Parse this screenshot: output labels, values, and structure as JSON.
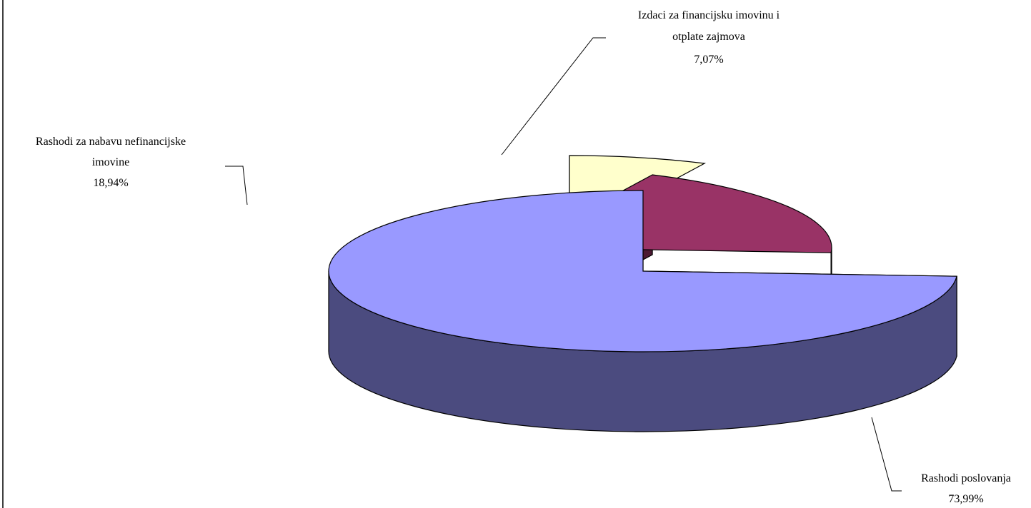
{
  "chart_data": {
    "type": "pie",
    "style": "3d-exploded",
    "title": "",
    "slices": [
      {
        "name": "Rashodi poslovanja",
        "name_lines": [
          "Rashodi poslovanja"
        ],
        "value": 73.99,
        "value_label": "73,99%",
        "top_color": "#9999FF",
        "side_color": "#4B4B7F"
      },
      {
        "name": "Rashodi za nabavu nefinancijske imovine",
        "name_lines": [
          "Rashodi za nabavu nefinancijske",
          "imovine"
        ],
        "value": 18.94,
        "value_label": "18,94%",
        "top_color": "#993366",
        "side_color": "#4C1932"
      },
      {
        "name": "Izdaci za financijsku imovinu i otplate zajmova",
        "name_lines": [
          "Izdaci za financijsku imovinu i",
          "otplate zajmova"
        ],
        "value": 7.07,
        "value_label": "7,07%",
        "top_color": "#FFFFCC",
        "side_color": "#7F7F66"
      }
    ],
    "legend": "none",
    "data_labels": "outside with leader lines"
  }
}
